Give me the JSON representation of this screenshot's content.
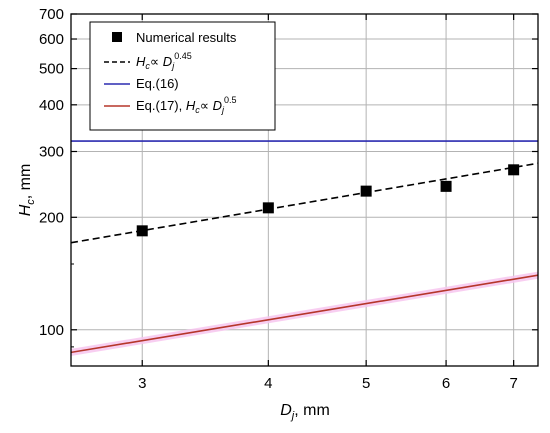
{
  "chart_data": {
    "type": "scatter",
    "x_scale": "log",
    "y_scale": "log",
    "xlim": [
      2.55,
      7.4
    ],
    "ylim": [
      80,
      700
    ],
    "x_ticks": [
      3,
      4,
      5,
      6,
      7
    ],
    "y_ticks": [
      100,
      200,
      300,
      400,
      500,
      600,
      700
    ],
    "grid": true,
    "legend_position": "top-left",
    "xlabel": {
      "base": "D",
      "sub": "j",
      "suffix": ", mm"
    },
    "ylabel": {
      "base": "H",
      "sub": "c",
      "suffix": ", mm"
    },
    "series": [
      {
        "name": "Numerical results",
        "kind": "markers",
        "color": "#000000",
        "x": [
          3,
          4,
          5,
          6,
          7
        ],
        "y": [
          184,
          212,
          235,
          242,
          268
        ]
      },
      {
        "name_parts": {
          "a": "H",
          "a_sub": "c",
          "op": "∝ ",
          "b": "D",
          "b_sub": "j",
          "exp": "0.45"
        },
        "kind": "dashed-line",
        "color": "#000000",
        "x": [
          2.55,
          7.4
        ],
        "y": [
          171,
          279
        ]
      },
      {
        "name": "Eq.(16)",
        "kind": "line",
        "color": "#2b2bb0",
        "x": [
          2.55,
          7.4
        ],
        "y": [
          320,
          320
        ]
      },
      {
        "name_parts": {
          "prefix": "Eq.(17), ",
          "a": "H",
          "a_sub": "c",
          "op": "∝ ",
          "b": "D",
          "b_sub": "j",
          "exp": "0.5"
        },
        "kind": "line",
        "color": "#b5362a",
        "glow": "#f7c6ef",
        "x": [
          2.55,
          7.4
        ],
        "y": [
          87,
          140
        ]
      }
    ]
  }
}
